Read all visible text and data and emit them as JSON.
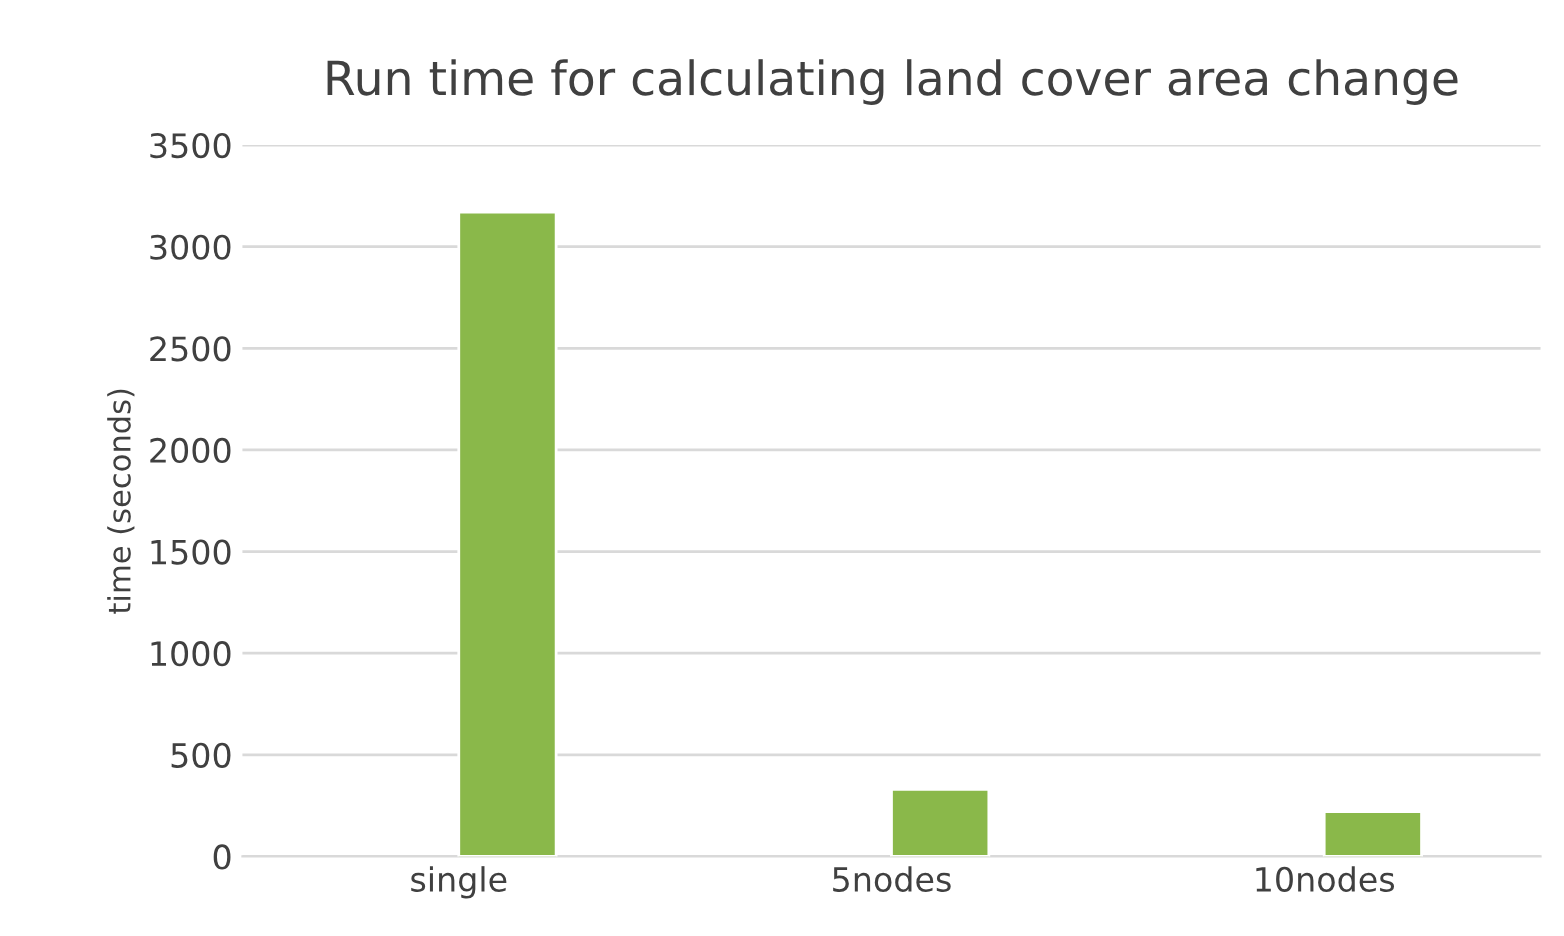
{
  "chart_data": {
    "type": "bar",
    "title": "Run time for calculating land cover area change",
    "ylabel": "time (seconds)",
    "categories": [
      "single",
      "5nodes",
      "10nodes"
    ],
    "series": [
      {
        "color": "#4472c4",
        "values": [
          null,
          null,
          null
        ]
      },
      {
        "color": "#8ab84a",
        "values": [
          3170,
          330,
          220
        ]
      }
    ],
    "ylim": [
      0,
      3500
    ],
    "yticks": [
      0,
      500,
      1000,
      1500,
      2000,
      2500,
      3000,
      3500
    ],
    "grid": "y",
    "legend": false
  }
}
